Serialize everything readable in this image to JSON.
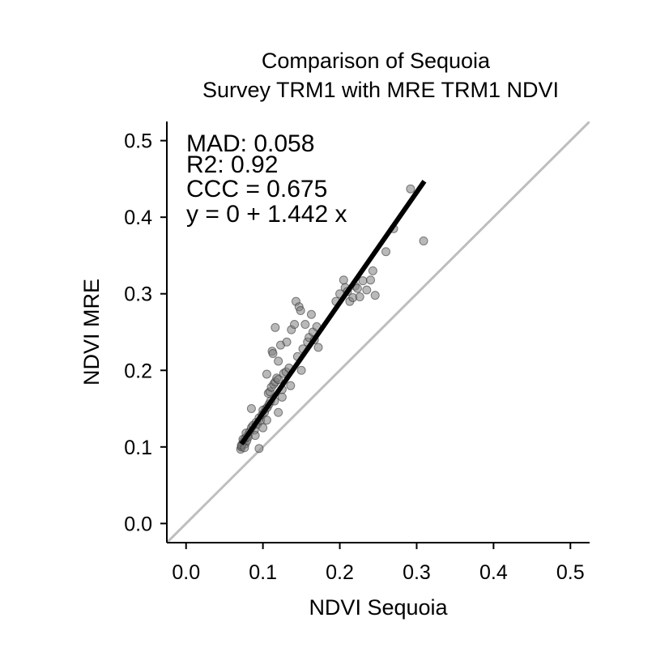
{
  "chart_data": {
    "type": "scatter",
    "title": [
      "Comparison of  Sequoia",
      "Survey TRM1 with MRE TRM1 NDVI"
    ],
    "xlabel": "NDVI Sequoia",
    "ylabel": "NDVI MRE",
    "xlim": [
      -0.025,
      0.525
    ],
    "ylim": [
      -0.025,
      0.525
    ],
    "xticks": [
      0.0,
      0.1,
      0.2,
      0.3,
      0.4,
      0.5
    ],
    "yticks": [
      0.0,
      0.1,
      0.2,
      0.3,
      0.4,
      0.5
    ],
    "xtick_labels": [
      "0.0",
      "0.1",
      "0.2",
      "0.3",
      "0.4",
      "0.5"
    ],
    "ytick_labels": [
      "0.0",
      "0.1",
      "0.2",
      "0.3",
      "0.4",
      "0.5"
    ],
    "annotations": [
      "MAD: 0.058",
      "R2: 0.92",
      "CCC =  0.675",
      "y =  0 + 1.442 x"
    ],
    "reference_line": {
      "slope": 1,
      "intercept": 0,
      "color": "#bebebe"
    },
    "fit_line": {
      "intercept": 0,
      "slope": 1.442,
      "x_range": [
        0.072,
        0.31
      ],
      "color": "#000000"
    },
    "point_color": "#808080",
    "points": [
      [
        0.071,
        0.097
      ],
      [
        0.072,
        0.1
      ],
      [
        0.073,
        0.103
      ],
      [
        0.074,
        0.105
      ],
      [
        0.075,
        0.107
      ],
      [
        0.076,
        0.11
      ],
      [
        0.077,
        0.104
      ],
      [
        0.078,
        0.112
      ],
      [
        0.079,
        0.108
      ],
      [
        0.08,
        0.115
      ],
      [
        0.081,
        0.113
      ],
      [
        0.072,
        0.102
      ],
      [
        0.074,
        0.11
      ],
      [
        0.076,
        0.099
      ],
      [
        0.078,
        0.118
      ],
      [
        0.083,
        0.12
      ],
      [
        0.085,
        0.125
      ],
      [
        0.087,
        0.128
      ],
      [
        0.089,
        0.122
      ],
      [
        0.091,
        0.132
      ],
      [
        0.093,
        0.13
      ],
      [
        0.095,
        0.138
      ],
      [
        0.097,
        0.135
      ],
      [
        0.099,
        0.142
      ],
      [
        0.1,
        0.148
      ],
      [
        0.102,
        0.145
      ],
      [
        0.104,
        0.15
      ],
      [
        0.106,
        0.152
      ],
      [
        0.108,
        0.156
      ],
      [
        0.11,
        0.16
      ],
      [
        0.085,
        0.15
      ],
      [
        0.09,
        0.115
      ],
      [
        0.095,
        0.098
      ],
      [
        0.1,
        0.125
      ],
      [
        0.105,
        0.135
      ],
      [
        0.107,
        0.17
      ],
      [
        0.109,
        0.172
      ],
      [
        0.111,
        0.178
      ],
      [
        0.114,
        0.182
      ],
      [
        0.116,
        0.185
      ],
      [
        0.118,
        0.19
      ],
      [
        0.12,
        0.188
      ],
      [
        0.105,
        0.195
      ],
      [
        0.112,
        0.225
      ],
      [
        0.113,
        0.222
      ],
      [
        0.116,
        0.256
      ],
      [
        0.12,
        0.212
      ],
      [
        0.123,
        0.233
      ],
      [
        0.125,
        0.175
      ],
      [
        0.127,
        0.196
      ],
      [
        0.13,
        0.198
      ],
      [
        0.131,
        0.237
      ],
      [
        0.134,
        0.203
      ],
      [
        0.136,
        0.18
      ],
      [
        0.137,
        0.253
      ],
      [
        0.141,
        0.26
      ],
      [
        0.143,
        0.29
      ],
      [
        0.145,
        0.218
      ],
      [
        0.147,
        0.283
      ],
      [
        0.149,
        0.278
      ],
      [
        0.15,
        0.2
      ],
      [
        0.152,
        0.228
      ],
      [
        0.155,
        0.26
      ],
      [
        0.158,
        0.237
      ],
      [
        0.16,
        0.243
      ],
      [
        0.163,
        0.273
      ],
      [
        0.165,
        0.25
      ],
      [
        0.167,
        0.24
      ],
      [
        0.17,
        0.257
      ],
      [
        0.172,
        0.23
      ],
      [
        0.12,
        0.145
      ],
      [
        0.115,
        0.16
      ],
      [
        0.125,
        0.165
      ],
      [
        0.195,
        0.29
      ],
      [
        0.2,
        0.3
      ],
      [
        0.205,
        0.318
      ],
      [
        0.207,
        0.308
      ],
      [
        0.21,
        0.303
      ],
      [
        0.213,
        0.29
      ],
      [
        0.217,
        0.295
      ],
      [
        0.22,
        0.31
      ],
      [
        0.223,
        0.307
      ],
      [
        0.226,
        0.296
      ],
      [
        0.23,
        0.317
      ],
      [
        0.235,
        0.305
      ],
      [
        0.24,
        0.318
      ],
      [
        0.243,
        0.33
      ],
      [
        0.246,
        0.298
      ],
      [
        0.26,
        0.355
      ],
      [
        0.27,
        0.385
      ],
      [
        0.292,
        0.437
      ],
      [
        0.309,
        0.369
      ]
    ]
  }
}
